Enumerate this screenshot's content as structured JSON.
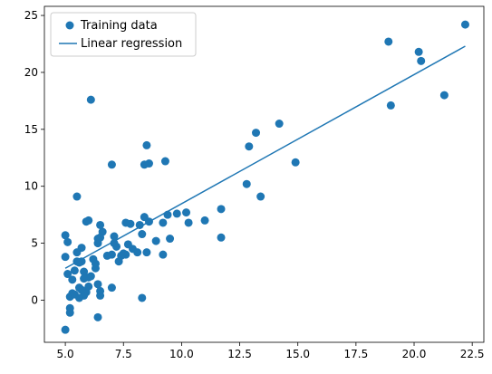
{
  "chart_data": {
    "type": "scatter",
    "title": "",
    "xlabel": "",
    "ylabel": "",
    "xlim": [
      4.1,
      23.0
    ],
    "ylim": [
      -3.7,
      25.8
    ],
    "xticks": [
      5.0,
      7.5,
      10.0,
      12.5,
      15.0,
      17.5,
      20.0,
      22.5
    ],
    "xtick_labels": [
      "5.0",
      "7.5",
      "10.0",
      "12.5",
      "15.0",
      "17.5",
      "20.0",
      "22.5"
    ],
    "yticks": [
      0,
      5,
      10,
      15,
      20,
      25
    ],
    "ytick_labels": [
      "0",
      "5",
      "10",
      "15",
      "20",
      "25"
    ],
    "grid": false,
    "legend_position": "top-left",
    "series": [
      {
        "name": "Training data",
        "kind": "scatter",
        "color": "#1f77b4",
        "x": [
          22.2,
          20.3,
          20.2,
          18.9,
          21.3,
          19.0,
          14.2,
          13.2,
          12.9,
          14.9,
          12.8,
          13.4,
          11.7,
          11.7,
          11.0,
          10.3,
          10.2,
          9.8,
          9.3,
          9.2,
          9.2,
          9.5,
          8.9,
          8.6,
          8.5,
          8.4,
          8.6,
          8.5,
          8.3,
          8.2,
          8.1,
          7.9,
          7.8,
          7.7,
          7.6,
          7.6,
          7.5,
          7.4,
          7.3,
          7.2,
          7.1,
          7.0,
          7.0,
          6.8,
          6.6,
          6.5,
          6.5,
          6.4,
          6.4,
          6.3,
          6.2,
          6.1,
          6.0,
          6.0,
          5.9,
          5.8,
          5.8,
          5.7,
          5.7,
          5.6,
          5.6,
          5.5,
          5.5,
          5.4,
          5.3,
          5.3,
          5.2,
          5.2,
          5.1,
          5.1,
          5.0,
          5.0,
          6.1,
          5.5,
          5.9,
          6.3,
          6.4,
          6.5,
          8.3,
          7.0,
          6.4,
          5.8,
          5.6,
          6.0,
          5.2,
          5.3,
          5.0,
          5.4,
          5.7,
          6.5,
          7.1,
          8.4,
          9.4
        ],
        "y": [
          24.2,
          21.0,
          21.8,
          22.7,
          18.0,
          17.1,
          15.5,
          14.7,
          13.5,
          12.1,
          10.2,
          9.1,
          8.0,
          5.5,
          7.0,
          6.8,
          7.7,
          7.6,
          12.2,
          6.8,
          4.0,
          5.4,
          5.2,
          12.0,
          13.6,
          11.9,
          6.9,
          4.2,
          5.8,
          6.6,
          4.2,
          4.5,
          6.7,
          4.9,
          6.8,
          4.0,
          4.1,
          3.9,
          3.4,
          4.7,
          5.0,
          11.9,
          4.0,
          3.9,
          6.0,
          5.5,
          6.6,
          5.4,
          5.0,
          3.2,
          3.6,
          2.1,
          2.0,
          7.0,
          6.9,
          2.5,
          1.9,
          3.4,
          4.6,
          3.3,
          1.1,
          9.1,
          3.4,
          2.6,
          1.8,
          0.5,
          -0.7,
          0.3,
          2.3,
          5.1,
          5.7,
          3.8,
          17.6,
          4.2,
          0.7,
          2.8,
          1.4,
          0.8,
          0.2,
          1.1,
          -1.5,
          0.4,
          0.2,
          1.2,
          -1.1,
          0.6,
          -2.6,
          0.5,
          0.9,
          0.4,
          5.6,
          7.3,
          7.5
        ]
      },
      {
        "name": "Linear regression",
        "kind": "line",
        "color": "#1f77b4",
        "x": [
          5.0,
          22.2
        ],
        "y": [
          2.8,
          22.3
        ]
      }
    ]
  }
}
